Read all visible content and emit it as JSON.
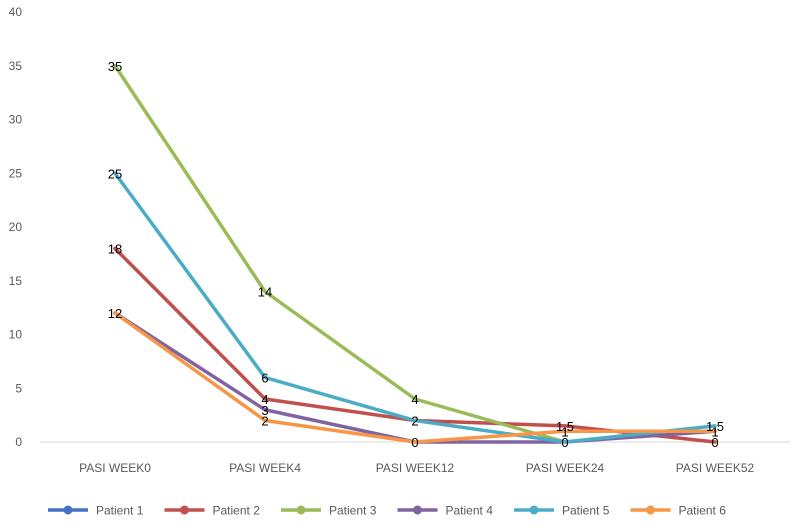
{
  "chart_data": {
    "type": "line",
    "title": "",
    "xlabel": "",
    "ylabel": "",
    "categories": [
      "PASI WEEK0",
      "PASI WEEK4",
      "PASI WEEK12",
      "PASI WEEK24",
      "PASI WEEK52"
    ],
    "ylim": [
      0,
      40
    ],
    "yticks": [
      0,
      5,
      10,
      15,
      20,
      25,
      30,
      35,
      40
    ],
    "grid": false,
    "legend_position": "bottom",
    "series": [
      {
        "name": "Patient 1",
        "color": "#4472c4",
        "values": [
          null,
          null,
          null,
          null,
          null
        ]
      },
      {
        "name": "Patient 2",
        "color": "#c0504d",
        "values": [
          18,
          4,
          2,
          1.5,
          0
        ],
        "labels": [
          "18",
          "4",
          "",
          "1.5",
          "0"
        ]
      },
      {
        "name": "Patient 3",
        "color": "#9bbb59",
        "values": [
          35,
          14,
          4,
          0,
          null
        ],
        "labels": [
          "35",
          "14",
          "4",
          "0",
          ""
        ]
      },
      {
        "name": "Patient 4",
        "color": "#8064a2",
        "values": [
          12,
          3,
          0,
          0,
          1
        ],
        "labels": [
          "",
          "3",
          "",
          "",
          "1"
        ]
      },
      {
        "name": "Patient 5",
        "color": "#4bacc6",
        "values": [
          25,
          6,
          2,
          0,
          1.5
        ],
        "labels": [
          "25",
          "6",
          "2",
          "",
          "1.5"
        ]
      },
      {
        "name": "Patient 6",
        "color": "#f79646",
        "values": [
          12,
          2,
          0,
          1,
          1
        ],
        "labels": [
          "12",
          "2",
          "0",
          "1",
          ""
        ]
      }
    ]
  }
}
